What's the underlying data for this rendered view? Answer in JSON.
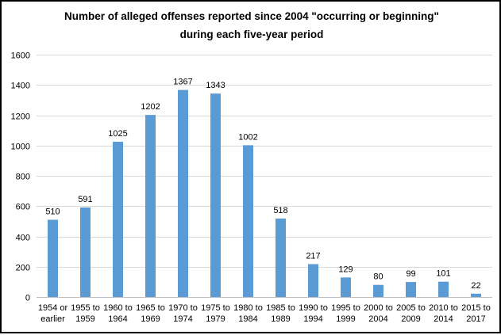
{
  "chart_data": {
    "type": "bar",
    "title_lines": [
      "Number of alleged offenses reported since 2004 \"occurring or beginning\"",
      "during each five-year period"
    ],
    "categories": [
      [
        "1954 or",
        "earlier"
      ],
      [
        "1955 to",
        "1959"
      ],
      [
        "1960 to",
        "1964"
      ],
      [
        "1965 to",
        "1969"
      ],
      [
        "1970 to",
        "1974"
      ],
      [
        "1975 to",
        "1979"
      ],
      [
        "1980 to",
        "1984"
      ],
      [
        "1985 to",
        "1989"
      ],
      [
        "1990 to",
        "1994"
      ],
      [
        "1995 to",
        "1999"
      ],
      [
        "2000 to",
        "2004"
      ],
      [
        "2005 to",
        "2009"
      ],
      [
        "2010 to",
        "2014"
      ],
      [
        "2015 to",
        "2017"
      ]
    ],
    "values": [
      510,
      591,
      1025,
      1202,
      1367,
      1343,
      1002,
      518,
      217,
      129,
      80,
      99,
      101,
      22
    ],
    "ylim": [
      0,
      1600
    ],
    "yticks": [
      0,
      200,
      400,
      600,
      800,
      1000,
      1200,
      1400,
      1600
    ],
    "grid": true,
    "legend": "none",
    "bar_color": "#5b9bd5"
  }
}
